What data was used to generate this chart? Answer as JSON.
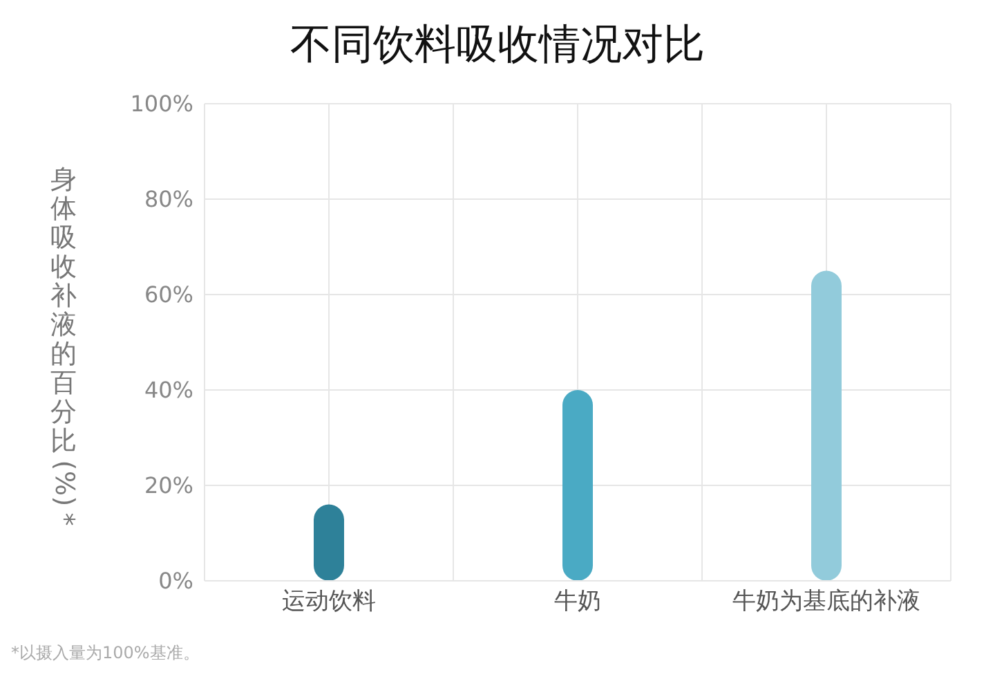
{
  "chart_data": {
    "type": "bar",
    "title": "不同饮料吸收情况对比",
    "ylabel": "身体吸收补液的百分比(%)*",
    "categories": [
      "运动饮料",
      "牛奶",
      "牛奶为基底的补液"
    ],
    "values": [
      16,
      40,
      65
    ],
    "colors": [
      "#2e8199",
      "#4aaac4",
      "#92cbdb"
    ],
    "ylim": [
      0,
      100
    ],
    "yticks": [
      {
        "value": 0,
        "label": "0%"
      },
      {
        "value": 20,
        "label": "20%"
      },
      {
        "value": 40,
        "label": "40%"
      },
      {
        "value": 60,
        "label": "60%"
      },
      {
        "value": 80,
        "label": "80%"
      },
      {
        "value": 100,
        "label": "100%"
      }
    ],
    "grid": true,
    "annotations": [
      "*以摄入量为100%基准。"
    ]
  }
}
